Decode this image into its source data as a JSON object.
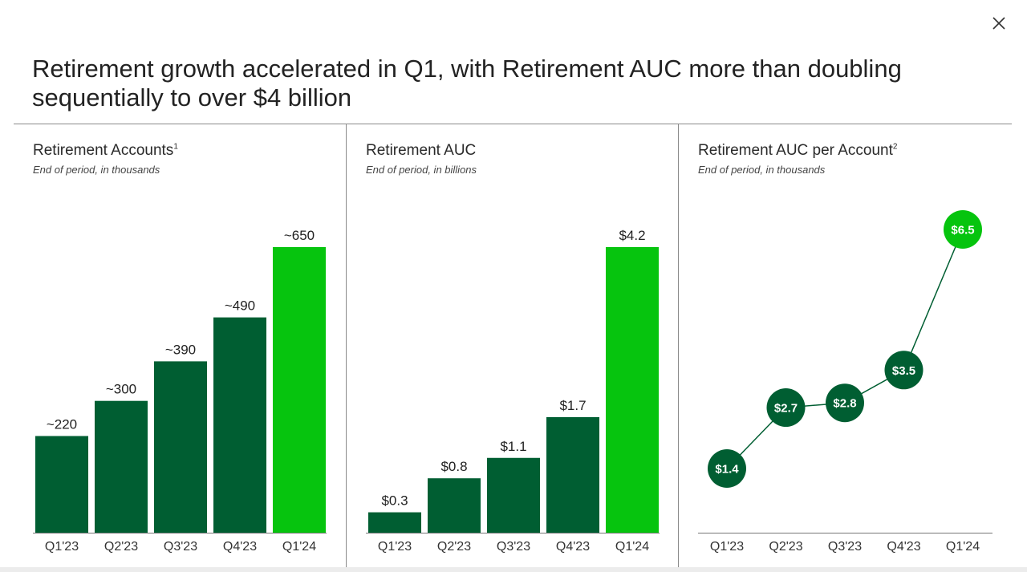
{
  "headline": "Retirement growth accelerated in Q1, with Retirement AUC more than doubling sequentially to over $4 billion",
  "colors": {
    "dark": "#005e32",
    "bright": "#06c40e",
    "axis": "#777777",
    "text": "#222222"
  },
  "icons": {
    "close": "close-icon"
  },
  "chart_data": [
    {
      "type": "bar",
      "title": "Retirement Accounts",
      "footnote": "1",
      "subtitle": "End of period, in thousands",
      "categories": [
        "Q1'23",
        "Q2'23",
        "Q3'23",
        "Q4'23",
        "Q1'24"
      ],
      "values": [
        220,
        300,
        390,
        490,
        650
      ],
      "labels": [
        "~220",
        "~300",
        "~390",
        "~490",
        "~650"
      ],
      "highlight_index": 4,
      "ylim": [
        0,
        650
      ]
    },
    {
      "type": "bar",
      "title": "Retirement AUC",
      "footnote": "",
      "subtitle": "End of period, in billions",
      "categories": [
        "Q1'23",
        "Q2'23",
        "Q3'23",
        "Q4'23",
        "Q1'24"
      ],
      "values": [
        0.3,
        0.8,
        1.1,
        1.7,
        4.2
      ],
      "labels": [
        "$0.3",
        "$0.8",
        "$1.1",
        "$1.7",
        "$4.2"
      ],
      "highlight_index": 4,
      "ylim": [
        0,
        4.2
      ]
    },
    {
      "type": "line",
      "title": "Retirement AUC per Account",
      "footnote": "2",
      "subtitle": "End of period, in thousands",
      "categories": [
        "Q1'23",
        "Q2'23",
        "Q3'23",
        "Q4'23",
        "Q1'24"
      ],
      "values": [
        1.4,
        2.7,
        2.8,
        3.5,
        6.5
      ],
      "labels": [
        "$1.4",
        "$2.7",
        "$2.8",
        "$3.5",
        "$6.5"
      ],
      "highlight_index": 4,
      "ylim": [
        0,
        7
      ]
    }
  ]
}
